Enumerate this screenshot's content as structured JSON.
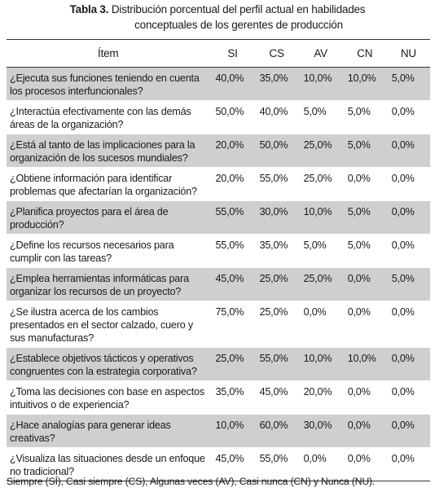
{
  "caption": {
    "label": "Tabla 3.",
    "line1": "Distribución porcentual del perfil actual en habilidades",
    "line2": "conceptuales de los gerentes de producción"
  },
  "table": {
    "headers": [
      "Ítem",
      "SI",
      "CS",
      "AV",
      "CN",
      "NU"
    ],
    "rows": [
      {
        "item": "¿Ejecuta sus funciones teniendo en cuenta los procesos interfuncionales?",
        "values": [
          "40,0%",
          "35,0%",
          "10,0%",
          "10,0%",
          "5,0%"
        ]
      },
      {
        "item": "¿Interactúa efectivamente con las demás áreas de la organización?",
        "values": [
          "50,0%",
          "40,0%",
          "5,0%",
          "5,0%",
          "0,0%"
        ]
      },
      {
        "item": "¿Está al tanto de las implicaciones para la organización de los sucesos mundiales?",
        "values": [
          "20,0%",
          "50,0%",
          "25,0%",
          "5,0%",
          "0,0%"
        ]
      },
      {
        "item": "¿Obtiene información para identificar problemas que afectarían la organización?",
        "values": [
          "20,0%",
          "55,0%",
          "25,0%",
          "0,0%",
          "0,0%"
        ]
      },
      {
        "item": "¿Planifica proyectos para el área de producción?",
        "values": [
          "55,0%",
          "30,0%",
          "10,0%",
          "5,0%",
          "0,0%"
        ]
      },
      {
        "item": "¿Define los recursos necesarios para cumplir con las tareas?",
        "values": [
          "55,0%",
          "35,0%",
          "5,0%",
          "5,0%",
          "0,0%"
        ]
      },
      {
        "item": "¿Emplea herramientas informáticas para organizar los recursos de un proyecto?",
        "values": [
          "45,0%",
          "25,0%",
          "25,0%",
          "0,0%",
          "5,0%"
        ]
      },
      {
        "item": "¿Se ilustra acerca de los cambios presentados en el sector calzado, cuero y sus manufacturas?",
        "values": [
          "75,0%",
          "25,0%",
          "0,0%",
          "0,0%",
          "0,0%"
        ]
      },
      {
        "item": "¿Establece objetivos tácticos y operativos congruentes con la estrategia corporativa?",
        "values": [
          "25,0%",
          "55,0%",
          "10,0%",
          "10,0%",
          "0,0%"
        ]
      },
      {
        "item": "¿Toma las decisiones con base en aspectos intuitivos o de experiencia?",
        "values": [
          "35,0%",
          "45,0%",
          "20,0%",
          "0,0%",
          "0,0%"
        ]
      },
      {
        "item": "¿Hace analogías para generar ideas creativas?",
        "values": [
          "10,0%",
          "60,0%",
          "30,0%",
          "0,0%",
          "0,0%"
        ]
      },
      {
        "item": "¿Visualiza las situaciones desde un enfoque no tradicional?",
        "values": [
          "45,0%",
          "55,0%",
          "0,0%",
          "0,0%",
          "0,0%"
        ]
      }
    ]
  },
  "note": "Siempre (SÍ), Casi siempre (CS), Algunas veces (AV), Casi nunca (CN) y Nunca (NU)."
}
